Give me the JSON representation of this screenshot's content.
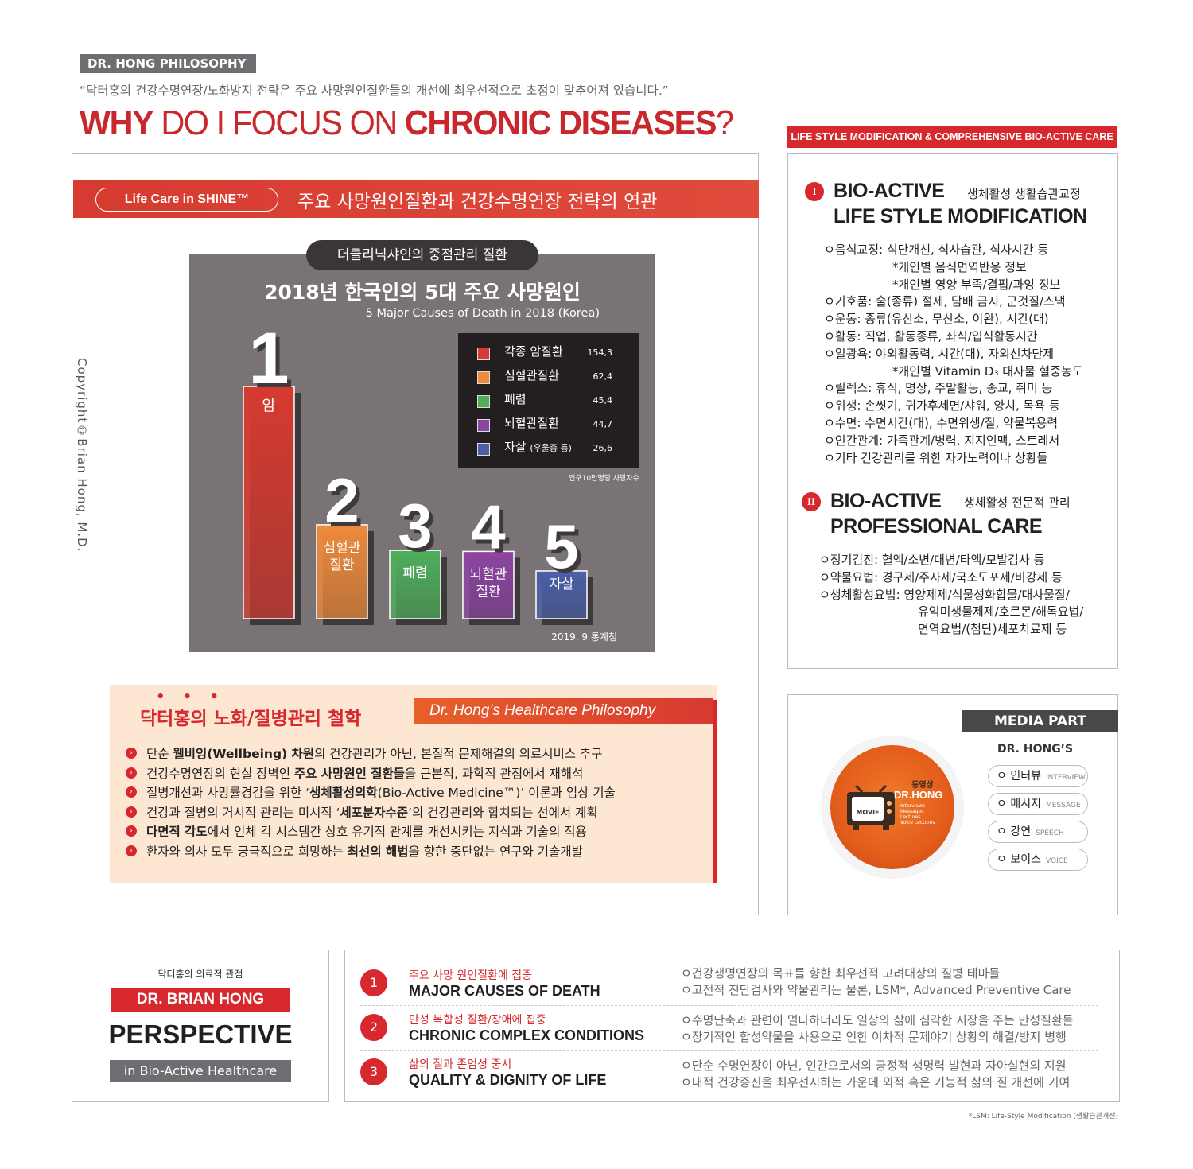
{
  "header": {
    "tag": "DR. HONG PHILOSOPHY",
    "quote": "“닥터홍의 건강수명연장/노화방지 전략은 주요 사망원인질환들의 개선에 최우선적으로 초점이 맞추어져 있습니다.”",
    "title_why": "WHY",
    "title_mid": " DO I FOCUS ON ",
    "title_cd": "CHRONIC DISEASES",
    "title_q": "?"
  },
  "left": {
    "pill": "Life Care in SHINE™",
    "band_title": "주요 사망원인질환과 건강수명연장 전략의 연관",
    "copyright": "Copyright©Brian Hong, M.D."
  },
  "chart_data": {
    "type": "bar",
    "pill": "더클리닉샤인의 중점관리 질환",
    "title": "2018년 한국인의 5대 주요 사망원인",
    "subtitle": "5 Major Causes of Death in 2018 (Korea)",
    "categories": [
      "암",
      "심혈관 질환",
      "폐렴",
      "뇌혈관 질환",
      "자살"
    ],
    "ranks": [
      "1",
      "2",
      "3",
      "4",
      "5"
    ],
    "legend": [
      {
        "label": "각종 암질환",
        "note": "",
        "value": "154,3"
      },
      {
        "label": "심혈관질환",
        "note": "",
        "value": "62,4"
      },
      {
        "label": "폐렴",
        "note": "",
        "value": "45,4"
      },
      {
        "label": "뇌혈관질환",
        "note": "",
        "value": "44,7"
      },
      {
        "label": "자살",
        "note": "(우울증 등)",
        "value": "26,6"
      }
    ],
    "values": [
      154.3,
      62.4,
      45.4,
      44.7,
      26.6
    ],
    "colors": [
      "#d63a30",
      "#ef8a3b",
      "#4fae5c",
      "#8d44a2",
      "#4a5fa6"
    ],
    "unit": "인구10만명당 사망자수",
    "source": "2019. 9  통계청"
  },
  "philosophy": {
    "dots": "• • •",
    "title": "닥터홍의 노화/질병관리 철학",
    "title_en": "Dr. Hong’s Healthcare Philosophy",
    "items": [
      [
        "단순 ",
        "웰비잉(Wellbeing) 차원",
        "의 건강관리가 아닌, 본질적 문제해결의 의료서비스 추구"
      ],
      [
        "건강수명연장의 현실 장벽인 ",
        "주요 사망원인 질환들",
        "을 근본적, 과학적 관점에서 재해석"
      ],
      [
        "질병개선과 사망률경감을 위한 ‘",
        "생체활성의학",
        "(Bio-Active Medicine™)’ 이론과 임상 기술"
      ],
      [
        "건강과 질병의 거시적 관리는 미시적 ‘",
        "세포분자수준",
        "’의 건강관리와 합치되는 선에서 계획"
      ],
      [
        "",
        "다면적 각도",
        "에서 인체 각 시스템간 상호 유기적 관계를 개선시키는 지식과 기술의 적용"
      ],
      [
        "환자와 의사 모두 궁극적으로 희망하는 ",
        "최선의 해법",
        "을 향한 중단없는 연구와 기술개발"
      ]
    ]
  },
  "right": {
    "tag": "LIFE STYLE MODIFICATION & COMPREHENSIVE BIO-ACTIVE CARE",
    "sec1": {
      "num": "I",
      "line1": "BIO-ACTIVE",
      "line2": "LIFE STYLE MODIFICATION",
      "korean": "생체활성 생활습관교정",
      "lines": [
        "ㅇ음식교정: 식단개선, 식사습관, 식사시간 등",
        "           *개인별 음식면역반응 정보",
        "           *개인별 영양 부족/결핍/과잉 정보",
        "ㅇ기호품: 술(종류) 절제, 담배 금지, 군것질/스낵",
        "ㅇ운동: 종류(유산소, 무산소, 이완), 시간(대)",
        "ㅇ활동: 직업, 활동종류, 좌식/입식활동시간",
        "ㅇ일광욕: 야외활동력, 시간(대), 자외선차단제",
        "           *개인별 Vitamin D₃ 대사물 혈중농도",
        "ㅇ릴렉스: 휴식, 명상, 주말활동, 종교, 취미 등",
        "ㅇ위생: 손씻기, 귀가후세면/샤워, 양치, 목욕 등",
        "ㅇ수면: 수면시간(대), 수면위생/질, 약물복용력",
        "ㅇ인간관계: 가족관계/병력, 지지인맥, 스트레서",
        "ㅇ기타 건강관리를 위한 자가노력이나 상황들"
      ]
    },
    "sec2": {
      "num": "II",
      "line1": "BIO-ACTIVE",
      "line2": "PROFESSIONAL CARE",
      "korean": "생체활성 전문적 관리",
      "lines": [
        "ㅇ정기검진: 혈액/소변/대변/타액/모발검사 등",
        "ㅇ약물요법: 경구제/주사제/국소도포제/비강제 등",
        "ㅇ생체활성요법: 영양제제/식물성화합물/대사물질/",
        "                  유익미생물제제/호르몬/해독요법/",
        "                  면역요법/(첨단)세포치료제 등"
      ]
    }
  },
  "media": {
    "tag": "MEDIA PART",
    "sub": "DR. HONG’S",
    "tv_label": "MOVIE",
    "center_k": "동영상",
    "center_name": "DR.HONG",
    "center_list": [
      "Interviews",
      "Messages",
      "Lectures",
      "Voice Lectures"
    ],
    "items": [
      {
        "ko": "인터뷰",
        "en": "INTERVIEW"
      },
      {
        "ko": "메시지",
        "en": "MESSAGE"
      },
      {
        "ko": "강연",
        "en": "SPEECH"
      },
      {
        "ko": "보이스",
        "en": "VOICE"
      }
    ]
  },
  "perspective": {
    "small": "닥터홍의 의료적 관점",
    "name": "DR. BRIAN HONG",
    "big": "PERSPECTIVE",
    "sub": "in Bio-Active Healthcare"
  },
  "focus": [
    {
      "num": "1",
      "kr": "주요 사망 원인질환에 집중",
      "en": "MAJOR CAUSES OF DEATH",
      "desc": [
        "ㅇ건강생명연장의 목표를 향한 최우선적 고려대상의 질병 테마들",
        "ㅇ고전적 진단검사와 약물관리는 물론, LSM*, Advanced Preventive Care"
      ]
    },
    {
      "num": "2",
      "kr": "만성 복합성 질환/장애에 집중",
      "en": "CHRONIC COMPLEX CONDITIONS",
      "desc": [
        "ㅇ수명단축과 관련이 멀다하더라도 일상의 삶에 심각한 지장을 주는 만성질환들",
        "ㅇ장기적인 합성약물을 사용으로 인한 이차적 문제야기 상황의 해결/방지 병행"
      ]
    },
    {
      "num": "3",
      "kr": "삶의 질과 존엄성 중시",
      "en": "QUALITY & DIGNITY OF LIFE",
      "desc": [
        "ㅇ단순 수명연장이 아닌, 인간으로서의 긍정적 생명력 발현과 자아실현의 지원",
        "ㅇ내적 건강증진을 최우선시하는 가운데 외적 혹은 기능적 삶의 질 개선에 기여"
      ]
    }
  ],
  "footnote": "*LSM: Life-Style Modification (생활습관개선)"
}
